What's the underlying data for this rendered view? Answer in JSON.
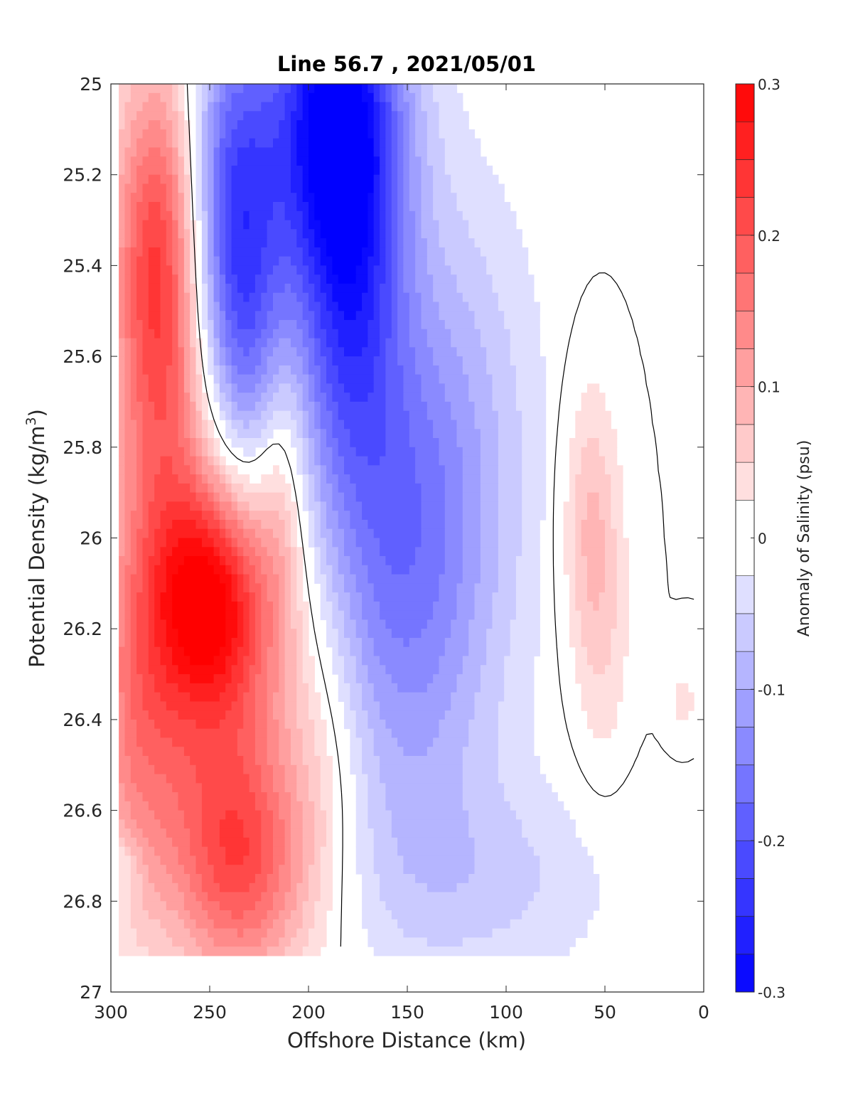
{
  "chart_data": {
    "type": "heatmap",
    "subtype": "filled-contour",
    "title": "Line 56.7 , 2021/05/01",
    "xlabel": "Offshore Distance (km)",
    "ylabel": "Potential Density (kg/m",
    "ylabel_sup": "3",
    "ylabel_tail": ")",
    "xlim": [
      300,
      0
    ],
    "x_reversed": true,
    "ylim": [
      25,
      27
    ],
    "y_reversed": true,
    "xticks": [
      300,
      250,
      200,
      150,
      100,
      50,
      0
    ],
    "xtick_labels": [
      "300",
      "250",
      "200",
      "150",
      "100",
      "50",
      "0"
    ],
    "yticks": [
      25,
      25.2,
      25.4,
      25.6,
      25.8,
      26,
      26.2,
      26.4,
      26.6,
      26.8,
      27
    ],
    "ytick_labels": [
      "25",
      "25.2",
      "25.4",
      "25.6",
      "25.8",
      "26",
      "26.2",
      "26.4",
      "26.6",
      "26.8",
      "27"
    ],
    "colorbar": {
      "label": "Anomaly of Salinity (psu)",
      "range": [
        -0.3,
        0.3
      ],
      "ticks": [
        0.3,
        0.2,
        0.1,
        0,
        -0.1,
        -0.2,
        -0.3
      ],
      "tick_labels": [
        "0.3",
        "0.2",
        "0.1",
        "0",
        "-0.1",
        "-0.2",
        "-0.3"
      ],
      "levels": [
        -0.3,
        -0.275,
        -0.25,
        -0.225,
        -0.2,
        -0.175,
        -0.15,
        -0.125,
        -0.1,
        -0.075,
        -0.05,
        -0.025,
        0.025,
        0.05,
        0.075,
        0.1,
        0.125,
        0.15,
        0.175,
        0.2,
        0.225,
        0.25,
        0.275,
        0.3
      ],
      "colormap": "blue-white-red"
    },
    "grid": false,
    "zero_contour": "black line",
    "data_extent": {
      "x": [
        296,
        5
      ],
      "y": [
        25,
        26.9
      ]
    },
    "features": [
      {
        "name": "nearshore-positive-core",
        "x": 278,
        "y": 25.37,
        "value": 0.2
      },
      {
        "name": "deep-positive-core",
        "x": 251,
        "y": 26.12,
        "value": 0.18
      },
      {
        "name": "lower-positive-core",
        "x": 235,
        "y": 26.72,
        "value": 0.15
      },
      {
        "name": "negative-core",
        "x": 185,
        "y": 25.04,
        "value": -0.25
      },
      {
        "name": "mid-negative-tongue",
        "x": 160,
        "y": 26.1,
        "value": -0.075
      },
      {
        "name": "offshore-weak-negative",
        "x": 100,
        "y": 26.75,
        "value": -0.05
      },
      {
        "name": "offshore-weak-positive",
        "x": 60,
        "y": 25.9,
        "value": 0.075
      }
    ],
    "colors": {
      "negative_max": "#0000ff",
      "zero": "#ffffff",
      "positive_max": "#ff0000",
      "contour_line": "#000000"
    }
  }
}
